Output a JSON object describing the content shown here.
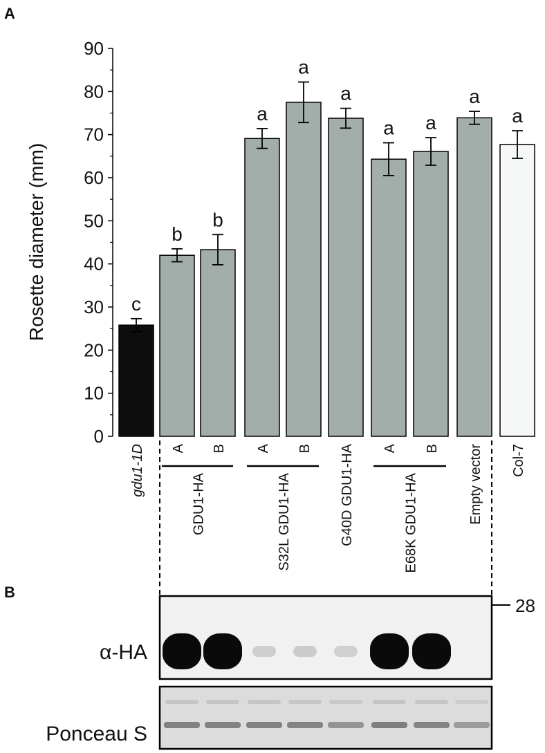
{
  "panel_labels": {
    "a": "A",
    "b": "B"
  },
  "chart_data": {
    "type": "bar",
    "ylabel": "Rosette diameter (mm)",
    "ylim": [
      0,
      90
    ],
    "yticks": [
      0,
      10,
      20,
      30,
      40,
      50,
      60,
      70,
      80,
      90
    ],
    "categories": [
      "gdu1-1D",
      "A",
      "B",
      "A",
      "B",
      "G40D GDU1-HA",
      "A",
      "B",
      "Empty vector",
      "Col-7"
    ],
    "values": [
      25.8,
      42.0,
      43.3,
      69.1,
      77.5,
      73.8,
      64.3,
      66.1,
      73.9,
      67.7
    ],
    "errors": [
      1.5,
      1.5,
      3.5,
      2.3,
      4.7,
      2.3,
      3.8,
      3.2,
      1.5,
      3.2
    ],
    "significance": [
      "c",
      "b",
      "b",
      "a",
      "a",
      "a",
      "a",
      "a",
      "a",
      "a"
    ],
    "colors": [
      "#0d0d0d",
      "#a3aeaa",
      "#a3aeaa",
      "#a3aeaa",
      "#a3aeaa",
      "#a3aeaa",
      "#a3aeaa",
      "#a3aeaa",
      "#a3aeaa",
      "#f6f7f7"
    ],
    "groups": [
      {
        "label": "GDU1-HA",
        "from": 1,
        "to": 2
      },
      {
        "label": "S32L  GDU1-HA",
        "from": 3,
        "to": 4
      },
      {
        "label": "E68K GDU1-HA",
        "from": 6,
        "to": 7
      }
    ]
  },
  "blot": {
    "ha_label": "α-HA",
    "ponceau_label": "Ponceau S",
    "marker": "28",
    "ha_bands": [
      1.0,
      0.9,
      0.18,
      0.2,
      0.12,
      0.95,
      0.92,
      0.0
    ],
    "ponceau_bands": [
      0.7,
      0.7,
      0.7,
      0.68,
      0.55,
      0.72,
      0.68,
      0.5
    ]
  }
}
